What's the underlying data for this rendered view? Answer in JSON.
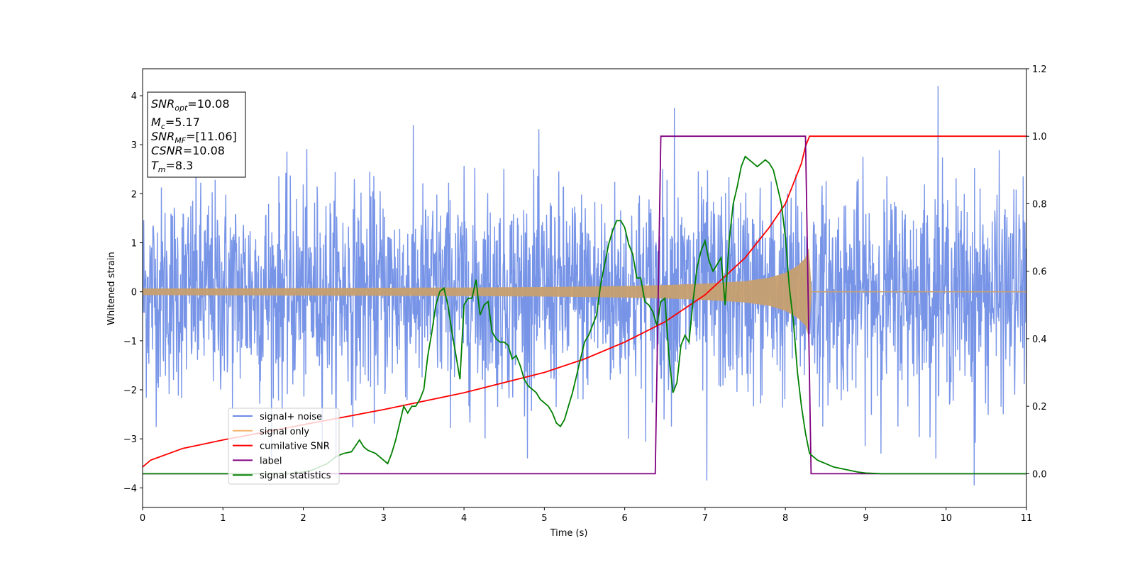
{
  "chart_data": {
    "type": "line",
    "xlabel": "Time (s)",
    "ylabel": "Whitened strain",
    "xlim": [
      0,
      11
    ],
    "ylim": [
      -4.4,
      4.55
    ],
    "y2lim": [
      -0.1,
      1.2
    ],
    "xticks": [
      0,
      1,
      2,
      3,
      4,
      5,
      6,
      7,
      8,
      9,
      10,
      11
    ],
    "yticks": [
      -4,
      -3,
      -2,
      -1,
      0,
      1,
      2,
      3,
      4
    ],
    "y2ticks": [
      0.0,
      0.2,
      0.4,
      0.6,
      0.8,
      1.0,
      1.2
    ],
    "info_box": {
      "lines": [
        {
          "var": "SNR",
          "sub": "opt",
          "value": "=10.08"
        },
        {
          "var": "M",
          "sub": "c",
          "value": "=5.17"
        },
        {
          "var": "SNR",
          "sub": "MF",
          "value": "=[11.06]"
        },
        {
          "var": "CSNR",
          "sub": "",
          "value": "=10.08"
        },
        {
          "var": "T",
          "sub": "m",
          "value": "=8.3"
        }
      ]
    },
    "legend": {
      "position": "lower-left",
      "entries": [
        {
          "label": "signal+ noise",
          "color": "#6b8be5"
        },
        {
          "label": "signal only",
          "color": "#f5b36b"
        },
        {
          "label": "cumilative SNR",
          "color": "#ff0000"
        },
        {
          "label": "label",
          "color": "#800080"
        },
        {
          "label": "signal statistics",
          "color": "#008000"
        }
      ]
    },
    "series": [
      {
        "name": "signal+ noise",
        "axis": "left",
        "color": "#6b8be5",
        "description_sample": {
          "t_start": 0,
          "t_end": 11,
          "envelope": [
            -2.6,
            2.6
          ],
          "extremes": [
            [
              9.9,
              4.2
            ],
            [
              10.35,
              -3.95
            ],
            [
              6.62,
              3.75
            ],
            [
              7.02,
              -3.85
            ]
          ]
        }
      },
      {
        "name": "signal only",
        "axis": "left",
        "color": "#c8a070",
        "envelope_t": [
          0,
          1,
          2,
          3,
          4,
          5,
          6,
          6.5,
          7,
          7.5,
          7.8,
          8.0,
          8.15,
          8.25,
          8.3,
          8.31,
          11
        ],
        "envelope_amp": [
          0.06,
          0.065,
          0.07,
          0.075,
          0.08,
          0.09,
          0.11,
          0.13,
          0.16,
          0.21,
          0.28,
          0.38,
          0.52,
          0.68,
          0.95,
          0.0,
          0.0
        ]
      },
      {
        "name": "cumilative SNR",
        "axis": "right",
        "color": "#ff0000",
        "x": [
          0,
          0.1,
          0.5,
          1,
          2,
          3,
          4,
          5,
          5.5,
          6,
          6.5,
          7,
          7.5,
          7.8,
          8.0,
          8.1,
          8.2,
          8.25,
          8.3,
          11
        ],
        "y": [
          0.02,
          0.04,
          0.075,
          0.1,
          0.145,
          0.19,
          0.24,
          0.3,
          0.34,
          0.39,
          0.45,
          0.53,
          0.64,
          0.73,
          0.8,
          0.86,
          0.92,
          0.97,
          1.0,
          1.0
        ]
      },
      {
        "name": "label",
        "axis": "right",
        "color": "#800080",
        "x": [
          0,
          6.38,
          6.45,
          8.25,
          8.32,
          11
        ],
        "y": [
          0,
          0,
          1,
          1,
          0,
          0
        ]
      },
      {
        "name": "signal statistics",
        "axis": "right",
        "color": "#008000",
        "x": [
          0,
          1,
          1.8,
          2.0,
          2.1,
          2.2,
          2.3,
          2.4,
          2.5,
          2.6,
          2.7,
          2.75,
          2.8,
          2.9,
          3.0,
          3.05,
          3.1,
          3.15,
          3.2,
          3.25,
          3.3,
          3.35,
          3.4,
          3.45,
          3.5,
          3.55,
          3.6,
          3.65,
          3.7,
          3.75,
          3.8,
          3.85,
          3.9,
          3.95,
          4.0,
          4.05,
          4.1,
          4.15,
          4.2,
          4.25,
          4.3,
          4.35,
          4.4,
          4.45,
          4.5,
          4.55,
          4.6,
          4.65,
          4.7,
          4.75,
          4.8,
          4.85,
          4.9,
          4.95,
          5.0,
          5.05,
          5.1,
          5.15,
          5.2,
          5.25,
          5.3,
          5.35,
          5.4,
          5.45,
          5.5,
          5.55,
          5.6,
          5.65,
          5.7,
          5.75,
          5.8,
          5.85,
          5.9,
          5.95,
          6.0,
          6.05,
          6.1,
          6.15,
          6.2,
          6.25,
          6.3,
          6.35,
          6.4,
          6.45,
          6.5,
          6.55,
          6.6,
          6.65,
          6.7,
          6.75,
          6.8,
          6.85,
          6.9,
          6.95,
          7.0,
          7.05,
          7.1,
          7.15,
          7.2,
          7.25,
          7.3,
          7.35,
          7.4,
          7.45,
          7.5,
          7.55,
          7.6,
          7.65,
          7.7,
          7.75,
          7.8,
          7.85,
          7.9,
          7.95,
          8.0,
          8.05,
          8.1,
          8.15,
          8.2,
          8.25,
          8.3,
          8.35,
          8.4,
          8.5,
          8.6,
          8.7,
          8.8,
          8.9,
          9.0,
          9.2,
          11
        ],
        "y": [
          0.0,
          0.0,
          0.0,
          0.005,
          0.01,
          0.02,
          0.03,
          0.05,
          0.06,
          0.065,
          0.1,
          0.08,
          0.07,
          0.06,
          0.04,
          0.03,
          0.06,
          0.1,
          0.15,
          0.2,
          0.18,
          0.2,
          0.2,
          0.22,
          0.25,
          0.35,
          0.42,
          0.5,
          0.54,
          0.55,
          0.5,
          0.42,
          0.35,
          0.28,
          0.5,
          0.52,
          0.52,
          0.575,
          0.47,
          0.5,
          0.51,
          0.42,
          0.4,
          0.39,
          0.39,
          0.38,
          0.34,
          0.35,
          0.32,
          0.28,
          0.26,
          0.25,
          0.24,
          0.22,
          0.21,
          0.2,
          0.18,
          0.15,
          0.14,
          0.16,
          0.2,
          0.24,
          0.29,
          0.34,
          0.39,
          0.41,
          0.44,
          0.47,
          0.56,
          0.62,
          0.68,
          0.72,
          0.75,
          0.75,
          0.73,
          0.68,
          0.65,
          0.58,
          0.58,
          0.51,
          0.5,
          0.48,
          0.44,
          0.51,
          0.52,
          0.35,
          0.24,
          0.27,
          0.38,
          0.41,
          0.39,
          0.51,
          0.61,
          0.66,
          0.69,
          0.63,
          0.6,
          0.62,
          0.64,
          0.5,
          0.69,
          0.8,
          0.85,
          0.91,
          0.94,
          0.93,
          0.92,
          0.91,
          0.92,
          0.93,
          0.92,
          0.9,
          0.85,
          0.8,
          0.7,
          0.55,
          0.45,
          0.3,
          0.2,
          0.12,
          0.06,
          0.05,
          0.04,
          0.03,
          0.02,
          0.015,
          0.01,
          0.005,
          0.002,
          0.0,
          0.0
        ]
      }
    ]
  }
}
